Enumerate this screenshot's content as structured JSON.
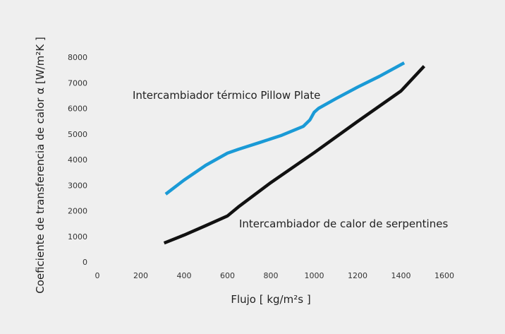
{
  "chart_data": {
    "type": "line",
    "xlabel": "Flujo [ kg/m²s ]",
    "ylabel": "Coeficiente de transferencia de calor α [W/m²K ]",
    "xlim": [
      0,
      1600
    ],
    "ylim": [
      0,
      8000
    ],
    "xticks": [
      0,
      200,
      400,
      600,
      800,
      1000,
      1200,
      1400,
      1600
    ],
    "yticks": [
      0,
      1000,
      2000,
      3000,
      4000,
      5000,
      6000,
      7000,
      8000
    ],
    "grid": false,
    "legend": "none",
    "series": [
      {
        "name": "Intercambiador térmico Pillow Plate",
        "color": "#1a9ad6",
        "x": [
          315,
          400,
          500,
          600,
          650,
          750,
          850,
          950,
          980,
          1000,
          1020,
          1100,
          1200,
          1300,
          1415
        ],
        "y": [
          2650,
          3200,
          3780,
          4250,
          4400,
          4670,
          4950,
          5300,
          5550,
          5850,
          6000,
          6380,
          6830,
          7250,
          7780
        ]
      },
      {
        "name": "Intercambiador de calor de serpentines",
        "color": "#111111",
        "x": [
          308,
          400,
          500,
          600,
          650,
          800,
          1000,
          1200,
          1400,
          1507
        ],
        "y": [
          740,
          1050,
          1420,
          1800,
          2150,
          3100,
          4270,
          5490,
          6680,
          7650
        ]
      }
    ],
    "annotations": [
      {
        "text": "Intercambiador térmico Pillow Plate",
        "series": 0
      },
      {
        "text": "Intercambiador de calor de serpentines",
        "series": 1
      }
    ]
  }
}
